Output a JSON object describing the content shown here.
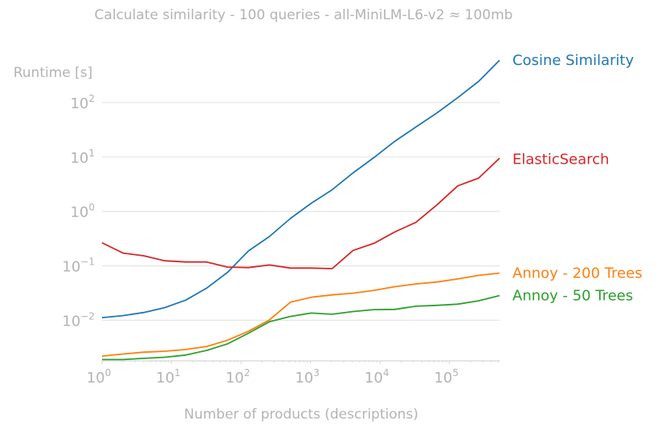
{
  "chart_data": {
    "type": "line",
    "title": "Calculate similarity - 100 queries - all-MiniLM-L6-v2 ≈ 100mb",
    "xlabel": "Number of products (descriptions)",
    "ylabel": "Runtime [s]",
    "xscale": "log",
    "yscale": "log",
    "xlim": [
      1,
      524288
    ],
    "ylim": [
      0.0018,
      1000
    ],
    "grid": "horizontal",
    "legend": "labels at line ends, right",
    "x_ticks": [
      {
        "base": "10",
        "exp": "0",
        "value": 1
      },
      {
        "base": "10",
        "exp": "1",
        "value": 10
      },
      {
        "base": "10",
        "exp": "2",
        "value": 100
      },
      {
        "base": "10",
        "exp": "3",
        "value": 1000
      },
      {
        "base": "10",
        "exp": "4",
        "value": 10000
      },
      {
        "base": "10",
        "exp": "5",
        "value": 100000
      }
    ],
    "y_ticks": [
      {
        "base": "10",
        "exp": "−2",
        "value": 0.01
      },
      {
        "base": "10",
        "exp": "−1",
        "value": 0.1
      },
      {
        "base": "10",
        "exp": "0",
        "value": 1
      },
      {
        "base": "10",
        "exp": "1",
        "value": 10
      },
      {
        "base": "10",
        "exp": "2",
        "value": 100
      }
    ],
    "x": [
      1,
      2,
      4,
      8,
      16,
      32,
      64,
      128,
      256,
      512,
      1024,
      2048,
      4096,
      8192,
      16384,
      32768,
      65536,
      131072,
      262144,
      524288
    ],
    "series": [
      {
        "name": "Cosine Similarity",
        "color": "#1f77b4",
        "values": [
          0.0112,
          0.0122,
          0.0139,
          0.0171,
          0.0235,
          0.039,
          0.076,
          0.188,
          0.345,
          0.74,
          1.41,
          2.5,
          5.1,
          9.8,
          19.5,
          35.5,
          64,
          123,
          245,
          600
        ]
      },
      {
        "name": "ElasticSearch",
        "color": "#d62728",
        "values": [
          0.265,
          0.172,
          0.153,
          0.124,
          0.118,
          0.118,
          0.095,
          0.093,
          0.104,
          0.091,
          0.091,
          0.089,
          0.192,
          0.26,
          0.42,
          0.63,
          1.31,
          2.95,
          4.1,
          9.5
        ]
      },
      {
        "name": "Annoy - 200 Trees",
        "color": "#ff7f0e",
        "values": [
          0.0022,
          0.0024,
          0.0026,
          0.0027,
          0.0029,
          0.0033,
          0.0043,
          0.0063,
          0.0101,
          0.0215,
          0.0265,
          0.0293,
          0.0315,
          0.0355,
          0.0415,
          0.0465,
          0.0505,
          0.0575,
          0.067,
          0.0735
        ]
      },
      {
        "name": "Annoy - 50 Trees",
        "color": "#2ca02c",
        "values": [
          0.0019,
          0.0019,
          0.002,
          0.0021,
          0.0023,
          0.0028,
          0.0037,
          0.0058,
          0.0094,
          0.0118,
          0.0136,
          0.0129,
          0.0145,
          0.0157,
          0.0159,
          0.0181,
          0.0188,
          0.0198,
          0.0228,
          0.0285
        ]
      }
    ]
  }
}
